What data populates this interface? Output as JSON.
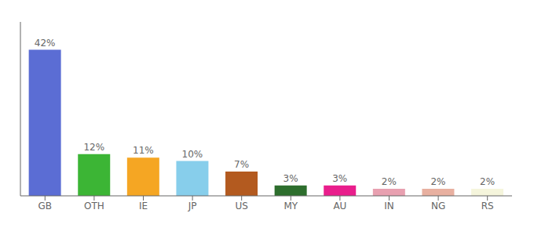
{
  "chart_data": {
    "type": "bar",
    "categories": [
      "GB",
      "OTH",
      "IE",
      "JP",
      "US",
      "MY",
      "AU",
      "IN",
      "NG",
      "RS"
    ],
    "values": [
      42,
      12,
      11,
      10,
      7,
      3,
      3,
      2,
      2,
      2
    ],
    "value_labels": [
      "42%",
      "12%",
      "11%",
      "10%",
      "7%",
      "3%",
      "3%",
      "2%",
      "2%",
      "2%"
    ],
    "colors": [
      "#5b6dd4",
      "#3cb535",
      "#f5a623",
      "#87ceeb",
      "#b35a1f",
      "#2d6e2d",
      "#e91e8c",
      "#e8a0b0",
      "#e8b0a0",
      "#f5f5dc"
    ],
    "ylim": [
      0,
      50
    ],
    "data_labels": true,
    "tick_labels": "x"
  }
}
